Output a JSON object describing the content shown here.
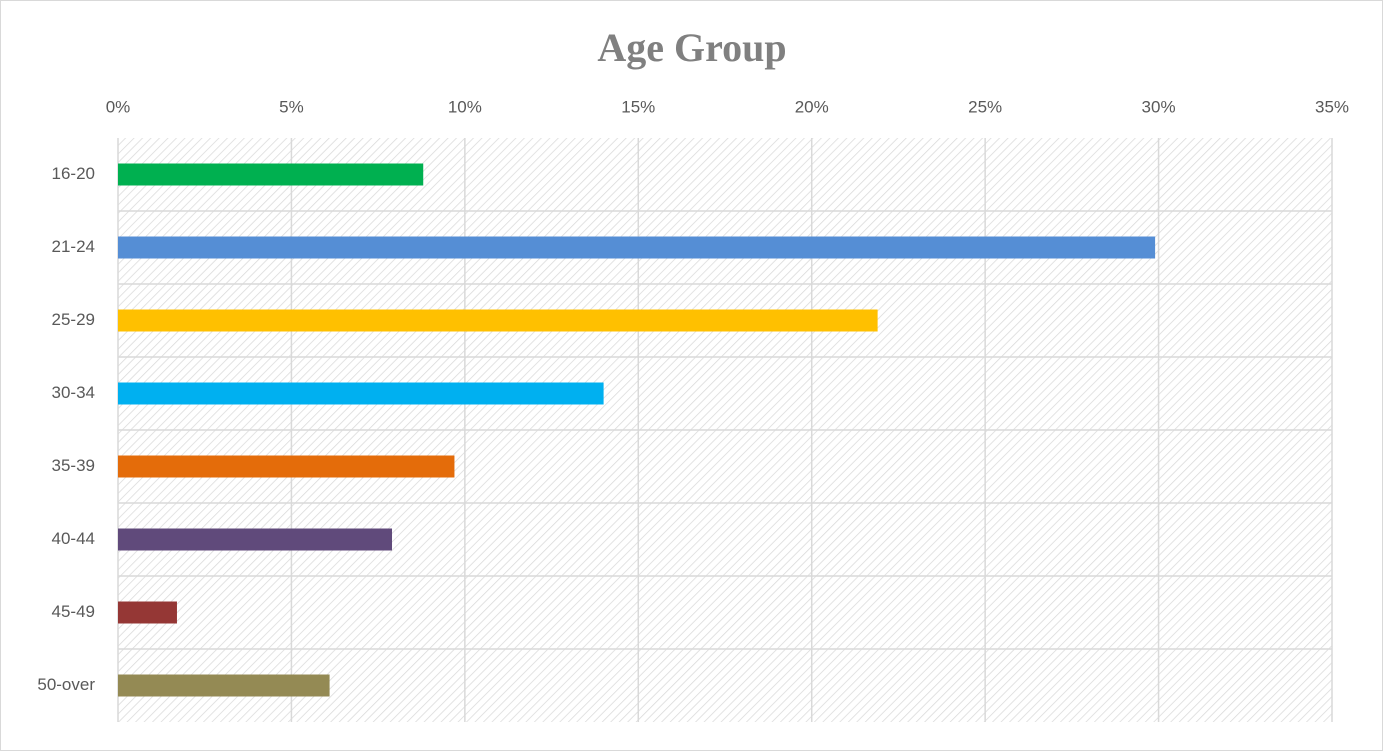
{
  "chart_data": {
    "type": "bar",
    "orientation": "horizontal",
    "title": "Age Group",
    "categories": [
      "16-20",
      "21-24",
      "25-29",
      "30-34",
      "35-39",
      "40-44",
      "45-49",
      "50-over"
    ],
    "values": [
      8.8,
      29.9,
      21.9,
      14.0,
      9.7,
      7.9,
      1.7,
      6.1
    ],
    "colors": [
      "#00b050",
      "#558ed5",
      "#ffc000",
      "#00b0f0",
      "#e46c0a",
      "#604a7b",
      "#953735",
      "#948a54"
    ],
    "xlim": [
      0,
      35
    ],
    "xticks": [
      {
        "value": 0,
        "label": "0%"
      },
      {
        "value": 5,
        "label": "5%"
      },
      {
        "value": 10,
        "label": "10%"
      },
      {
        "value": 15,
        "label": "15%"
      },
      {
        "value": 20,
        "label": "20%"
      },
      {
        "value": 25,
        "label": "25%"
      },
      {
        "value": 30,
        "label": "30%"
      },
      {
        "value": 35,
        "label": "35%"
      }
    ],
    "grid": true
  }
}
